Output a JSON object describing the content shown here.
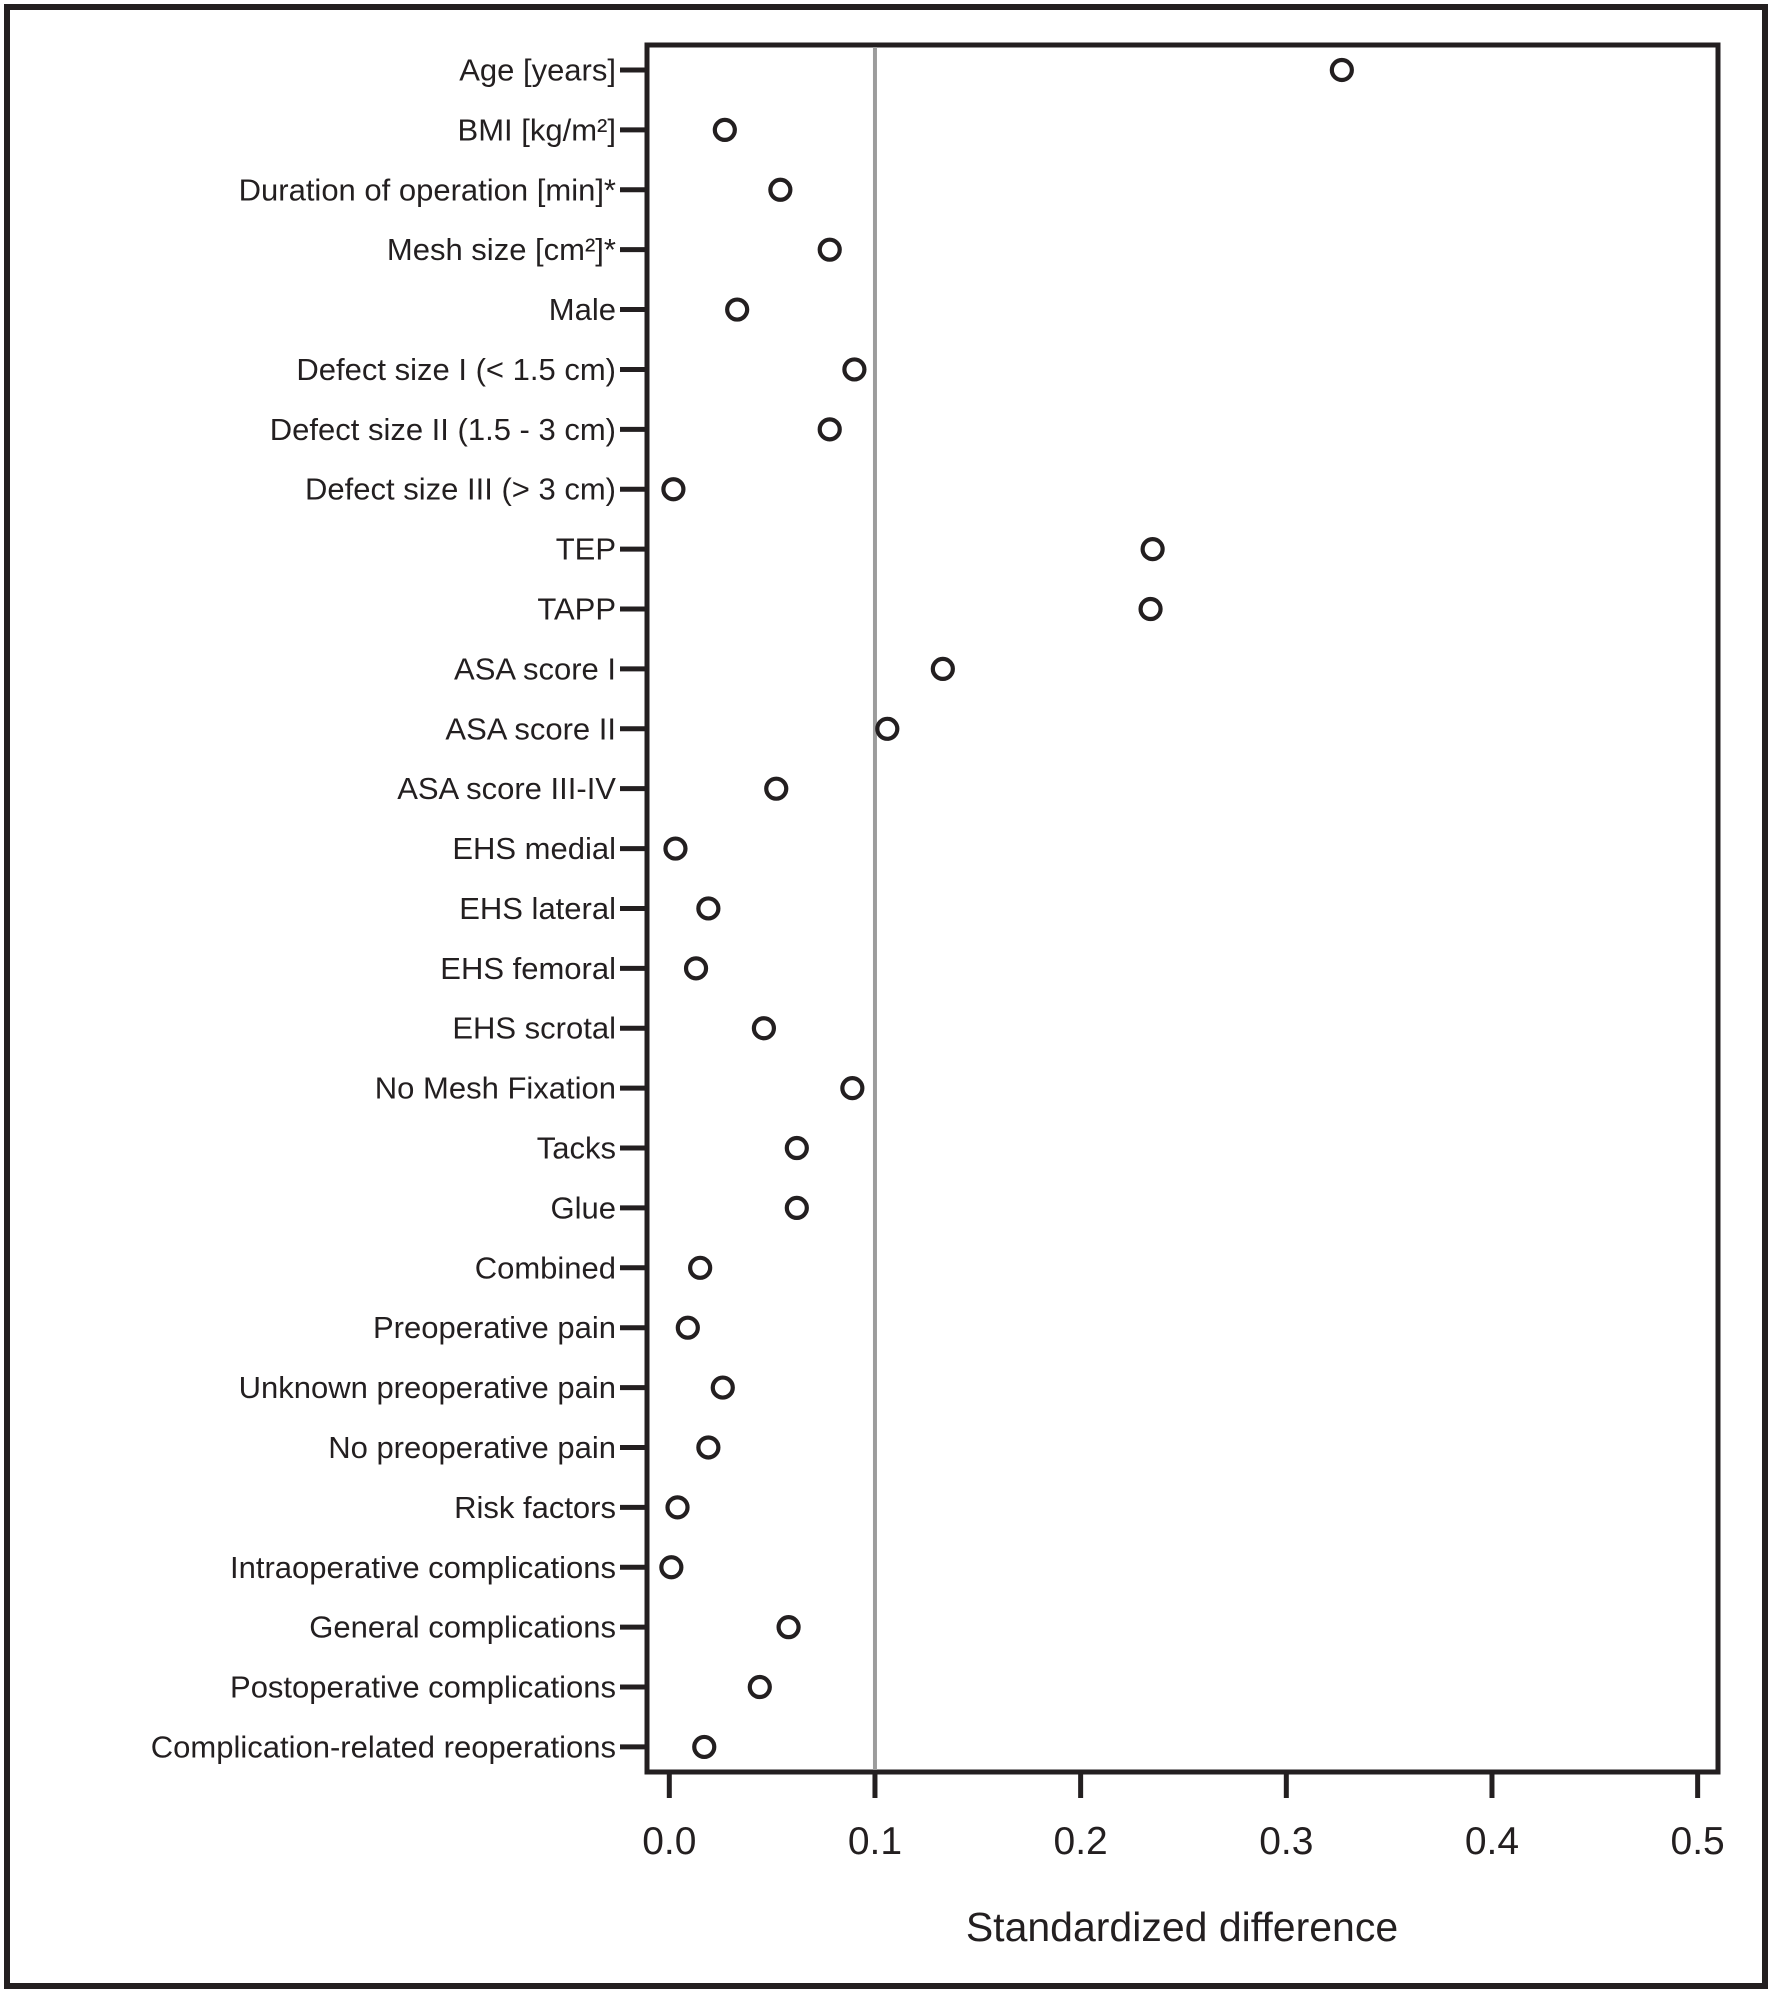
{
  "chart_data": {
    "type": "scatter",
    "subtype": "dot-plot",
    "title": "",
    "xlabel": "Standardized difference",
    "ylabel": "",
    "xlim": [
      0.0,
      0.5
    ],
    "xticks": [
      0.0,
      0.1,
      0.2,
      0.3,
      0.4,
      0.5
    ],
    "xtick_labels": [
      "0.0",
      "0.1",
      "0.2",
      "0.3",
      "0.4",
      "0.5"
    ],
    "reference_line_x": 0.1,
    "grid": false,
    "legend": false,
    "marker": "open-circle",
    "categories": [
      "Age [years]",
      "BMI [kg/m²]",
      "Duration of operation [min]*",
      "Mesh size [cm²]*",
      "Male",
      "Defect size I (< 1.5 cm)",
      "Defect size II (1.5 - 3 cm)",
      "Defect size III (> 3 cm)",
      "TEP",
      "TAPP",
      "ASA score I",
      "ASA score II",
      "ASA score III-IV",
      "EHS medial",
      "EHS lateral",
      "EHS femoral",
      "EHS scrotal",
      "No Mesh Fixation",
      "Tacks",
      "Glue",
      "Combined",
      "Preoperative pain",
      "Unknown preoperative pain",
      "No preoperative pain",
      "Risk factors",
      "Intraoperative complications",
      "General complications",
      "Postoperative complications",
      "Complication-related reoperations"
    ],
    "values": [
      0.327,
      0.027,
      0.054,
      0.078,
      0.033,
      0.09,
      0.078,
      0.002,
      0.235,
      0.234,
      0.133,
      0.106,
      0.052,
      0.003,
      0.019,
      0.013,
      0.046,
      0.089,
      0.062,
      0.062,
      0.015,
      0.009,
      0.026,
      0.019,
      0.004,
      0.001,
      0.058,
      0.044,
      0.017
    ],
    "colors": {
      "marker_stroke": "#231f20",
      "marker_fill": "#ffffff",
      "reference_line": "#9c9c9c",
      "axis": "#231f20",
      "background": "#ffffff"
    }
  }
}
